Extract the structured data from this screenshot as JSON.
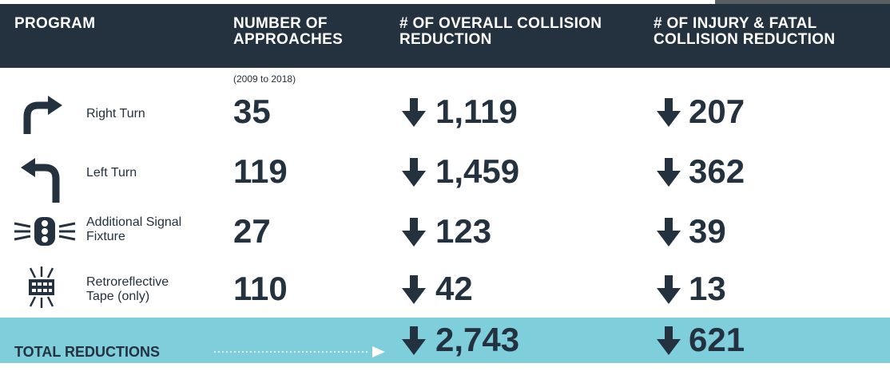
{
  "header": {
    "columns": [
      "PROGRAM",
      "NUMBER OF APPROACHES",
      "# OF OVERALL COLLISION REDUCTION",
      "# OF INJURY & FATAL COLLISION REDUCTION"
    ]
  },
  "note": "(2009 to 2018)",
  "rows": [
    {
      "program": "Right Turn",
      "approaches": "35",
      "overall": "1,119",
      "injury": "207"
    },
    {
      "program": "Left Turn",
      "approaches": "119",
      "overall": "1,459",
      "injury": "362"
    },
    {
      "program": "Additional Signal Fixture",
      "approaches": "27",
      "overall": "123",
      "injury": "39"
    },
    {
      "program": "Retroreflective Tape (only)",
      "approaches": "110",
      "overall": "42",
      "injury": "13"
    }
  ],
  "total": {
    "label": "TOTAL REDUCTIONS",
    "overall": "2,743",
    "injury": "621"
  }
}
